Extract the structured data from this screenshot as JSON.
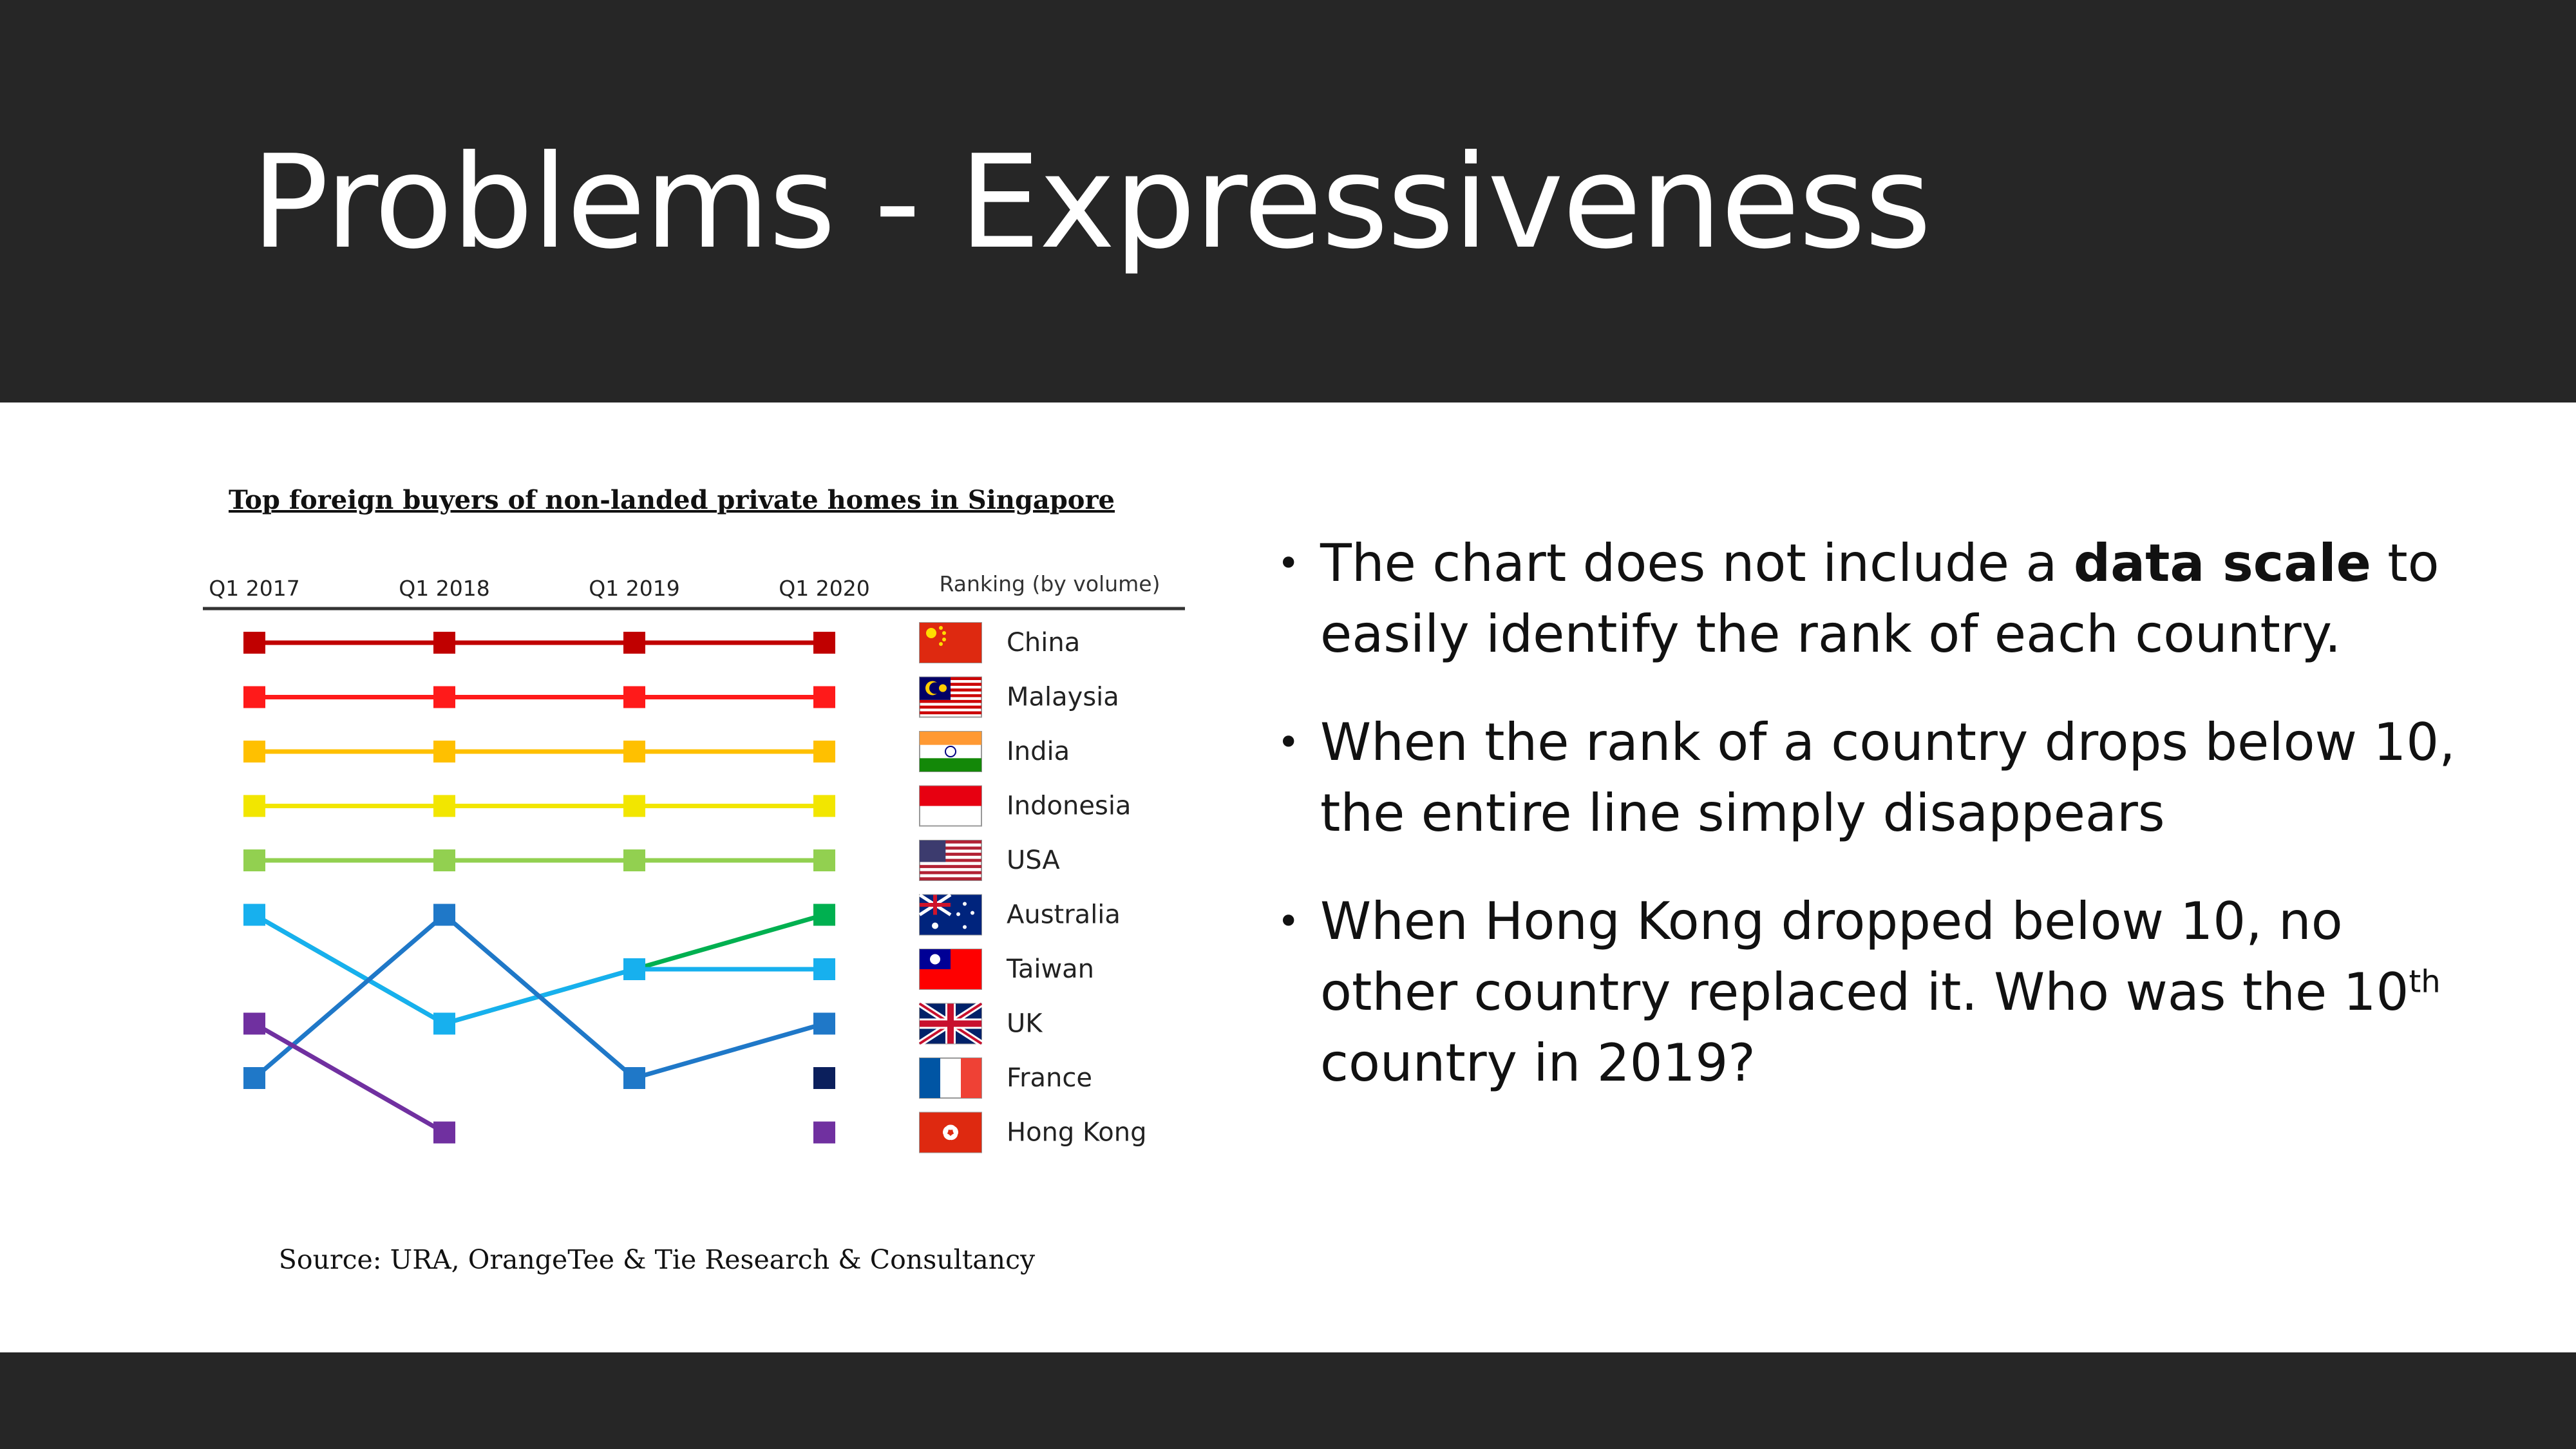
{
  "slide": {
    "title": "Problems - Expressiveness"
  },
  "bullets": [
    {
      "before": "The chart does not include a ",
      "bold": "data scale",
      "after": " to easily identify the rank of each country."
    },
    {
      "text": "When the rank of a country drops below 10, the entire line simply disappears"
    },
    {
      "before": "When Hong Kong dropped below 10, no other country replaced it. Who was the 10",
      "sup": "th",
      "after": " country in 2019?"
    }
  ],
  "chart_data": {
    "type": "line",
    "title": "Top foreign buyers of non-landed private homes in Singapore",
    "x": [
      "Q1 2017",
      "Q1 2018",
      "Q1 2019",
      "Q1 2020"
    ],
    "legend_title": "Ranking (by volume)",
    "source": "Source: URA, OrangeTee & Tie Research & Consultancy",
    "y_inverted": true,
    "ylim": [
      1,
      10
    ],
    "y_axis_shown": false,
    "grid": false,
    "legend_position": "right",
    "series": [
      {
        "name": "China",
        "values": [
          1,
          1,
          1,
          1
        ],
        "color": "#C00000",
        "flag": "china-flag-icon"
      },
      {
        "name": "Malaysia",
        "values": [
          2,
          2,
          2,
          2
        ],
        "color": "#FF1A1A",
        "flag": "malaysia-flag-icon"
      },
      {
        "name": "India",
        "values": [
          3,
          3,
          3,
          3
        ],
        "color": "#FFC000",
        "flag": "india-flag-icon"
      },
      {
        "name": "Indonesia",
        "values": [
          4,
          4,
          4,
          4
        ],
        "color": "#F2E600",
        "flag": "indonesia-flag-icon"
      },
      {
        "name": "USA",
        "values": [
          5,
          5,
          5,
          5
        ],
        "color": "#92D050",
        "flag": "usa-flag-icon"
      },
      {
        "name": "Australia",
        "values": [
          6,
          8,
          7,
          6
        ],
        "color": "#00B050",
        "flag": "australia-flag-icon"
      },
      {
        "name": "Taiwan",
        "values": [
          6,
          8,
          7,
          7
        ],
        "color": "#17B0EE",
        "flag": "taiwan-flag-icon"
      },
      {
        "name": "UK",
        "values": [
          9,
          6,
          9,
          8
        ],
        "color": "#1F78C8",
        "flag": "uk-flag-icon"
      },
      {
        "name": "France",
        "values": [
          null,
          null,
          null,
          9
        ],
        "color": "#0B1F5C",
        "flag": "france-flag-icon"
      },
      {
        "name": "Hong Kong",
        "values": [
          8,
          10,
          null,
          10
        ],
        "color": "#7030A0",
        "flag": "hong-kong-flag-icon"
      }
    ]
  }
}
